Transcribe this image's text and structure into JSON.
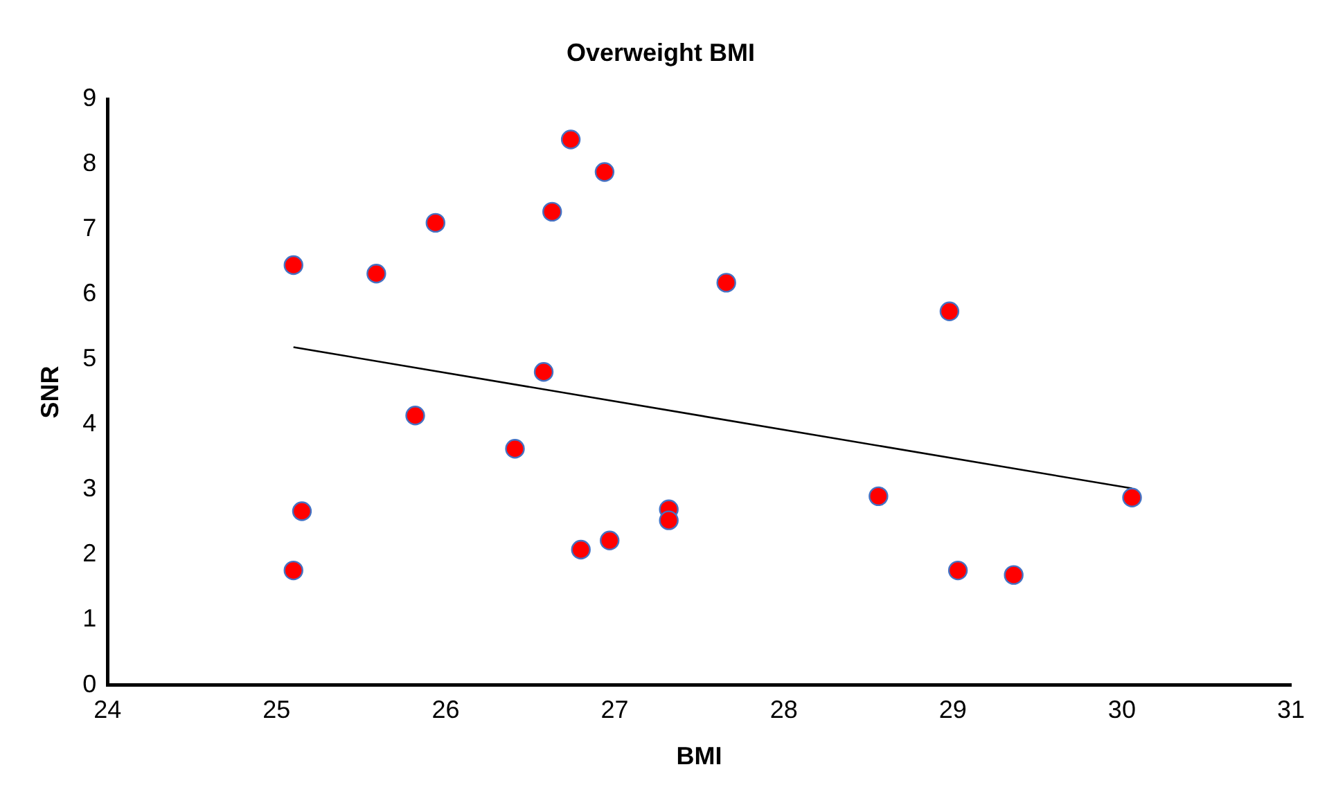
{
  "chart_data": {
    "type": "scatter",
    "title": "Overweight BMI",
    "xlabel": "BMI",
    "ylabel": "SNR",
    "xlim": [
      24,
      31
    ],
    "xticks": [
      24,
      25,
      26,
      27,
      28,
      29,
      30,
      31
    ],
    "ylim": [
      0,
      9
    ],
    "yticks": [
      0,
      1,
      2,
      3,
      4,
      5,
      6,
      7,
      8,
      9
    ],
    "grid": false,
    "legend": false,
    "series": [
      {
        "type": "scatter",
        "marker": "circle",
        "color": "#ff0000",
        "x": [
          26.74,
          26.94,
          26.63,
          25.94,
          25.1,
          25.59,
          26.58,
          25.82,
          26.41,
          25.15,
          25.1,
          27.32,
          27.32,
          26.8,
          26.97,
          27.66,
          28.98,
          28.56,
          30.06,
          29.03,
          29.36
        ],
        "values": [
          8.38,
          7.88,
          7.27,
          7.1,
          6.45,
          6.32,
          4.81,
          4.14,
          3.63,
          2.67,
          1.76,
          2.7,
          2.53,
          2.08,
          2.22,
          6.18,
          5.74,
          2.9,
          2.88,
          1.76,
          1.69
        ]
      },
      {
        "type": "line",
        "marker": "none",
        "color": "#000000",
        "x": [
          25.1,
          30.06
        ],
        "values": [
          5.19,
          3.02
        ]
      }
    ]
  }
}
